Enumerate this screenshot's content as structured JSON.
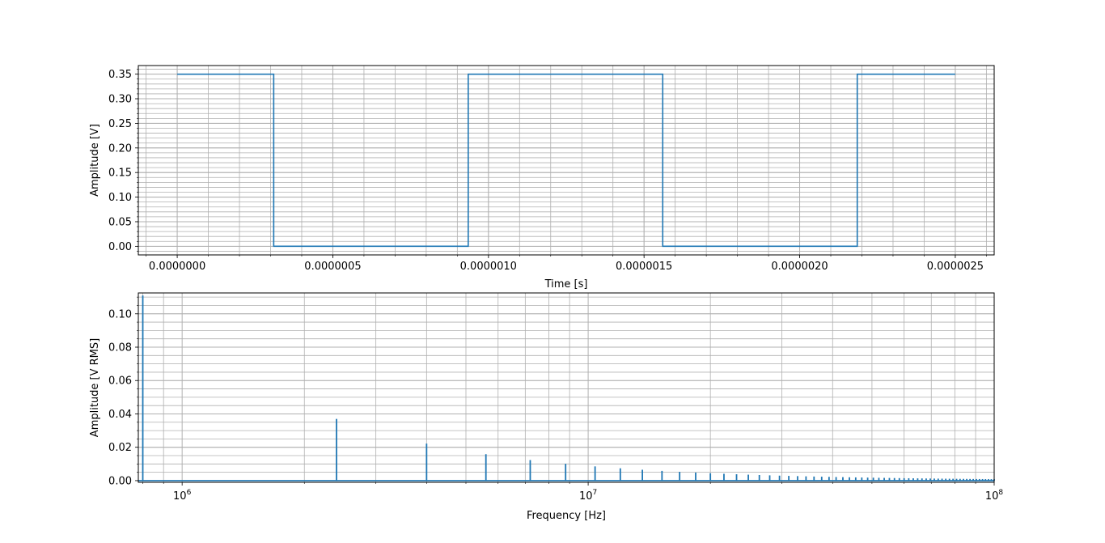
{
  "chart_data": [
    {
      "type": "line",
      "xlabel": "Time [s]",
      "ylabel": "Amplitude [V]",
      "xlim": [
        -1.25e-07,
        2.625e-06
      ],
      "ylim": [
        -0.0175,
        0.3675
      ],
      "x_ticks": [
        0,
        5e-07,
        1e-06,
        1.5e-06,
        2e-06,
        2.5e-06
      ],
      "x_tick_labels": [
        "0.0000000",
        "0.0000005",
        "0.0000010",
        "0.0000015",
        "0.0000020",
        "0.0000025"
      ],
      "y_ticks": [
        0,
        0.05,
        0.1,
        0.15,
        0.2,
        0.25,
        0.3,
        0.35
      ],
      "y_tick_labels": [
        "0.00",
        "0.05",
        "0.10",
        "0.15",
        "0.20",
        "0.25",
        "0.30",
        "0.35"
      ],
      "grid": true,
      "minor_grid": true,
      "series": [
        {
          "color": "#1f77b4",
          "x": [
            0,
            3.1e-07,
            3.1e-07,
            9.35e-07,
            9.35e-07,
            1.56e-06,
            1.56e-06,
            2.185e-06,
            2.185e-06,
            2.5e-06
          ],
          "y": [
            0.35,
            0.35,
            0,
            0,
            0.35,
            0.35,
            0,
            0,
            0.35,
            0.35
          ]
        }
      ]
    },
    {
      "type": "line",
      "xscale": "log",
      "xlabel": "Frequency [Hz]",
      "ylabel": "Amplitude [V RMS]",
      "xlim": [
        780000,
        100000000
      ],
      "ylim": [
        -0.001,
        0.1125
      ],
      "x_ticks": [
        1000000,
        10000000,
        100000000
      ],
      "x_tick_labels": [
        {
          "base": "10",
          "exp": "6"
        },
        {
          "base": "10",
          "exp": "7"
        },
        {
          "base": "10",
          "exp": "8"
        }
      ],
      "y_ticks": [
        0,
        0.02,
        0.04,
        0.06,
        0.08,
        0.1
      ],
      "y_tick_labels": [
        "0.00",
        "0.02",
        "0.04",
        "0.06",
        "0.08",
        "0.10"
      ],
      "grid": true,
      "minor_grid": true,
      "fundamental_hz": 800000,
      "peak_amplitude": 0.111,
      "odd_harmonics_only": true,
      "color": "#1f77b4"
    }
  ]
}
